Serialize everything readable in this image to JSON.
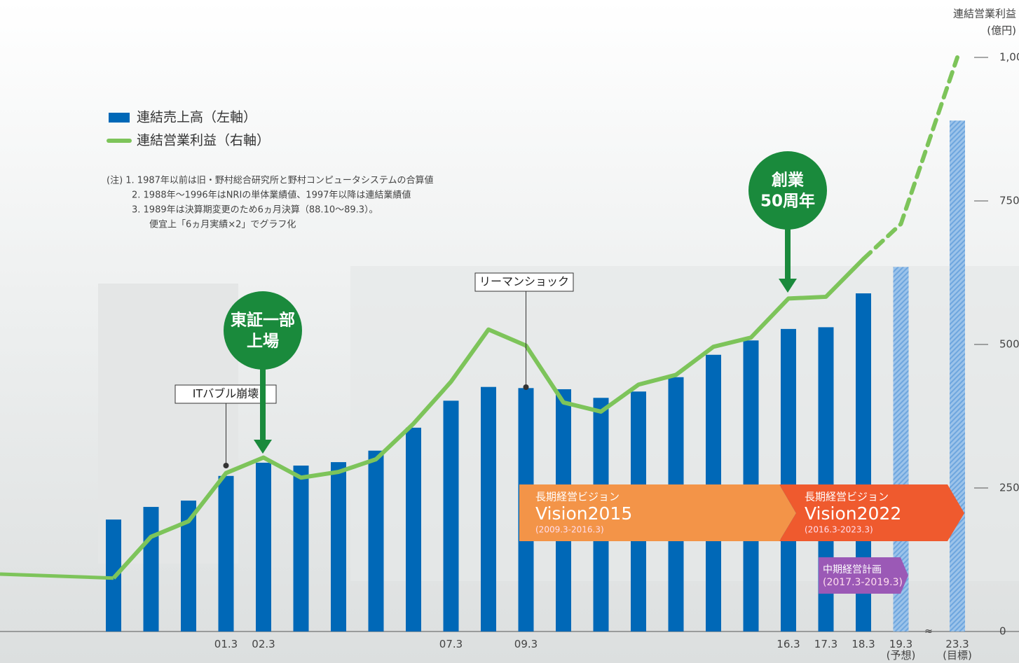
{
  "chart_data": {
    "type": "bar_line",
    "categories": [
      null,
      null,
      null,
      "01.3",
      "02.3",
      null,
      null,
      null,
      null,
      "07.3",
      null,
      "09.3",
      null,
      null,
      null,
      null,
      null,
      null,
      "16.3",
      "17.3",
      "18.3",
      "19.3\n(予想)",
      "23.3\n(目標)"
    ],
    "series": [
      {
        "name": "連結売上高（左軸）",
        "color": "#0068b7",
        "axis": "y",
        "values": [
          195,
          217,
          228,
          271,
          294,
          289,
          295,
          315,
          355,
          402,
          426,
          424,
          422,
          407,
          418,
          443,
          482,
          507,
          527,
          530,
          589,
          635,
          890
        ]
      },
      {
        "name": "連結営業利益（右軸）",
        "color": "#7dc45a",
        "axis": "y2",
        "values": [
          93,
          165,
          192,
          276,
          303,
          268,
          278,
          300,
          362,
          435,
          526,
          498,
          399,
          383,
          430,
          447,
          496,
          512,
          580,
          583,
          649,
          710,
          1000
        ]
      }
    ],
    "ylim": [
      0,
      1000
    ],
    "y2lim": [
      0,
      1000
    ],
    "y2ticks": [
      0,
      250,
      500,
      750,
      {
        "value": 1000,
        "label": "1,000"
      }
    ],
    "y2_title": [
      "連結営業利益",
      "(億円)"
    ],
    "hatched_from": 21,
    "dashed_from": 20,
    "notes": [
      "(注) 1. 1987年以前は旧・野村総合研究所と野村コンピュータシステムの合算値",
      "2. 1988年～1996年はNRIの単体業績値、1997年以降は連結業績値",
      "3. 1989年は決算期変更のため6ヵ月決算（88.10～89.3）。",
      "便宜上「6ヵ月実績×2」でグラフ化"
    ],
    "callouts": [
      "ITバブル崩壊",
      "リーマンショック"
    ],
    "milestones": [
      [
        "東証一部",
        "上場"
      ],
      [
        "創業",
        "50周年"
      ]
    ],
    "plans": [
      {
        "label": "長期経営ビジョン",
        "name": "Vision2015",
        "period": "(2009.3-2016.3)"
      },
      {
        "label": "長期経営ビジョン",
        "name": "Vision2022",
        "period": "(2016.3-2023.3)"
      },
      {
        "label": "中期経営計画",
        "period": "(2017.3-2019.3)"
      }
    ]
  }
}
